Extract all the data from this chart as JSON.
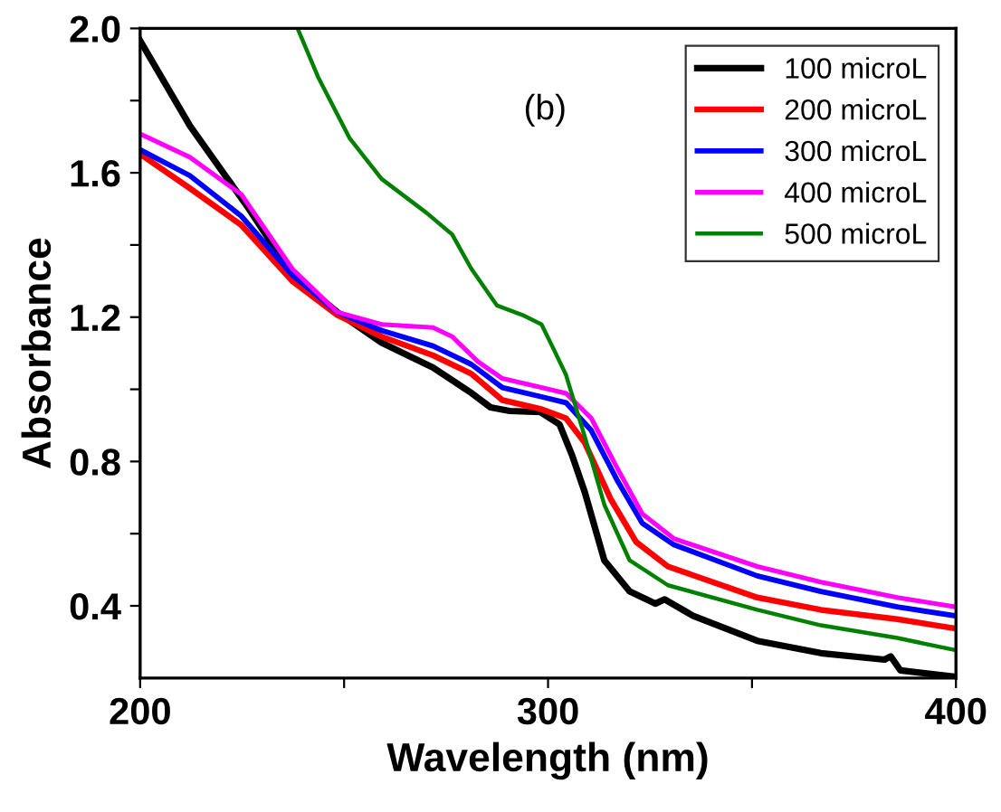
{
  "chart_data": {
    "type": "line",
    "xlabel": "Wavelength (nm)",
    "ylabel": "Absorbance",
    "annotations": [
      "(b)"
    ],
    "xlim": [
      200,
      400
    ],
    "ylim": [
      0.2,
      2.0
    ],
    "xticks": [
      200,
      {
        "value": 250,
        "label": null
      },
      300,
      {
        "value": 350,
        "label": null
      },
      400
    ],
    "yticks": [
      0.4,
      {
        "value": 0.6,
        "label": null
      },
      0.8,
      {
        "value": 1.0,
        "label": null
      },
      1.2,
      {
        "value": 1.4,
        "label": null
      },
      1.6,
      {
        "value": 1.8,
        "label": null
      },
      {
        "value": 2.0,
        "label": "2.0"
      }
    ],
    "legend": "top right",
    "grid": false,
    "marker": "none",
    "line_style": "solid",
    "series": [
      {
        "name": "100 microL",
        "color": "#000000",
        "x": [
          200,
          212.2,
          226.3,
          237.3,
          248.3,
          259.2,
          271.8,
          281.2,
          285.9,
          290.6,
          298.1,
          302.8,
          305.9,
          309,
          313.8,
          320,
          326.3,
          328.6,
          335.6,
          351.3,
          366.9,
          382.5,
          384,
          386.4,
          400
        ],
        "values": [
          1.966,
          1.73,
          1.506,
          1.317,
          1.214,
          1.129,
          1.06,
          0.99,
          0.95,
          0.94,
          0.937,
          0.903,
          0.817,
          0.715,
          0.526,
          0.44,
          0.406,
          0.418,
          0.372,
          0.303,
          0.269,
          0.251,
          0.26,
          0.221,
          0.203
        ]
      },
      {
        "name": "200 microL",
        "color": "#ff0000",
        "x": [
          200,
          212.2,
          224.8,
          237.3,
          248.3,
          259.2,
          271.8,
          281.2,
          288.8,
          298.1,
          304.4,
          309,
          315.3,
          321.6,
          329.4,
          351.3,
          366.9,
          385.6,
          400
        ],
        "values": [
          1.652,
          1.557,
          1.455,
          1.3,
          1.206,
          1.146,
          1.094,
          1.043,
          0.97,
          0.946,
          0.92,
          0.852,
          0.697,
          0.577,
          0.509,
          0.423,
          0.389,
          0.363,
          0.337
        ]
      },
      {
        "name": "300 microL",
        "color": "#0000ff",
        "x": [
          200,
          212.2,
          224.8,
          237.3,
          248.3,
          259.2,
          271.8,
          281.2,
          288.8,
          298.1,
          304.4,
          310.6,
          316.9,
          323.1,
          330.9,
          351.3,
          366.9,
          385.6,
          400
        ],
        "values": [
          1.664,
          1.592,
          1.48,
          1.317,
          1.214,
          1.163,
          1.12,
          1.069,
          1.005,
          0.98,
          0.963,
          0.886,
          0.749,
          0.629,
          0.569,
          0.483,
          0.44,
          0.397,
          0.372
        ]
      },
      {
        "name": "400 microL",
        "color": "#ff00ff",
        "x": [
          200,
          212.2,
          224.8,
          237.3,
          248.3,
          259.2,
          271.8,
          276.5,
          282.8,
          288.8,
          298.1,
          304.4,
          310.6,
          316.9,
          323.1,
          330.9,
          351.3,
          366.9,
          385.6,
          400
        ],
        "values": [
          1.708,
          1.643,
          1.54,
          1.334,
          1.214,
          1.18,
          1.171,
          1.146,
          1.077,
          1.03,
          1.006,
          0.989,
          0.92,
          0.783,
          0.655,
          0.586,
          0.509,
          0.466,
          0.423,
          0.397
        ]
      },
      {
        "name": "500 microL",
        "color": "#008000",
        "x": [
          238.6,
          243.6,
          251.4,
          259.2,
          270.2,
          276.5,
          281.2,
          287.5,
          293.7,
          298.4,
          301,
          304.4,
          309,
          313.8,
          320,
          329.4,
          351.3,
          366.9,
          385.6,
          400
        ],
        "values": [
          2.0,
          1.866,
          1.695,
          1.583,
          1.489,
          1.429,
          1.334,
          1.232,
          1.206,
          1.18,
          1.12,
          1.04,
          0.869,
          0.68,
          0.526,
          0.457,
          0.389,
          0.346,
          0.311,
          0.277
        ]
      }
    ]
  }
}
